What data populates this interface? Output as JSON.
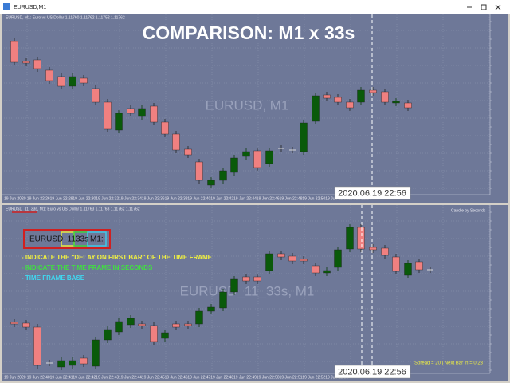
{
  "window": {
    "title": "EURUSD,M1"
  },
  "top_chart": {
    "header": "EURUSD, M1: Euro vs US Dollar 1.11760 1.11762 1.11752 1.11762",
    "overlay_title": "COMPARISON: M1 x 33s",
    "watermark": "EURUSD, M1",
    "time_labels": [
      "19 Jun 2020",
      "19 Jun 22:26",
      "19 Jun 22:28",
      "19 Jun 22:30",
      "19 Jun 22:32",
      "19 Jun 22:34",
      "19 Jun 22:36",
      "19 Jun 22:38",
      "19 Jun 22:40",
      "19 Jun 22:42",
      "19 Jun 22:44",
      "19 Jun 22:46",
      "19 Jun 22:48",
      "19 Jun 22:50",
      "19 Jun 22:52",
      "19 Jun 22:54"
    ],
    "date_label": "2020.06.19 22:56"
  },
  "bottom_chart": {
    "header": "EURUSD_11_33s, M1: Euro vs US Dollar 1.11763 1.11763 1.11762 1.11762",
    "label_parts": [
      "EURUSD",
      "_11",
      "33s",
      "M1:"
    ],
    "notes": [
      "- INDICATE THE \"DELAY ON FIRST BAR\" OF THE TIME FRAME",
      "- INDICATE THE TIME FRAME IN SECONDS",
      "- TIME FRAME BASE"
    ],
    "watermark": "EURUSD_11_33s, M1",
    "indicator": "Candle by Seconds",
    "status": "Spread = 20 | Next Bar in = 0.23",
    "time_labels": [
      "19 Jun 2020",
      "19 Jun 22:40",
      "19 Jun 22:41",
      "19 Jun 22:42",
      "19 Jun 22:43",
      "19 Jun 22:44",
      "19 Jun 22:45",
      "19 Jun 22:46",
      "19 Jun 22:47",
      "19 Jun 22:48",
      "19 Jun 22:49",
      "19 Jun 22:50",
      "19 Jun 22:51",
      "19 Jun 22:52",
      "19 Jun 22:53"
    ],
    "date_label": "2020.06.19 22:56"
  }
}
